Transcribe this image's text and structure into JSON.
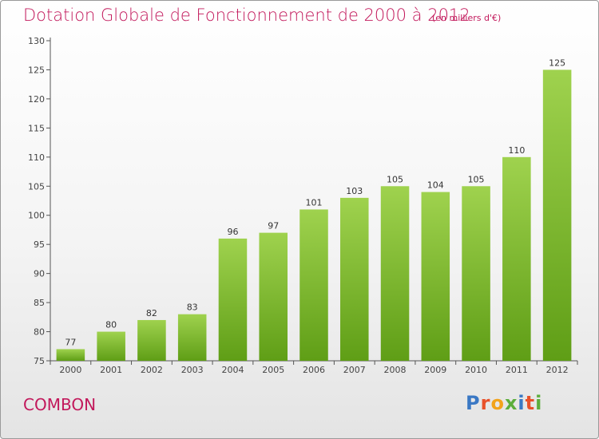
{
  "header": {
    "title": "Dotation Globale de Fonctionnement de 2000 à 2012",
    "unit": "(en milliers d'€)"
  },
  "footer": {
    "commune": "COMBON",
    "logo_text": "Proxiti",
    "logo_colors": [
      "#3a78c4",
      "#e8512a",
      "#f2a31b",
      "#5cae3c",
      "#3a78c4",
      "#e8512a",
      "#5cae3c"
    ]
  },
  "colors": {
    "title": "#c2185b",
    "bar_top": "#9fd24e",
    "bar_bottom": "#5f9e16",
    "axis": "#555555"
  },
  "chart_data": {
    "type": "bar",
    "title": "Dotation Globale de Fonctionnement de 2000 à 2012",
    "xlabel": "",
    "ylabel": "",
    "categories": [
      "2000",
      "2001",
      "2002",
      "2003",
      "2004",
      "2005",
      "2006",
      "2007",
      "2008",
      "2009",
      "2010",
      "2011",
      "2012"
    ],
    "values": [
      77,
      80,
      82,
      83,
      96,
      97,
      101,
      103,
      105,
      104,
      105,
      110,
      125
    ],
    "ylim": [
      75,
      130
    ],
    "yticks": [
      75,
      80,
      85,
      90,
      95,
      100,
      105,
      110,
      115,
      120,
      125,
      130
    ],
    "grid": false,
    "legend": "none"
  }
}
